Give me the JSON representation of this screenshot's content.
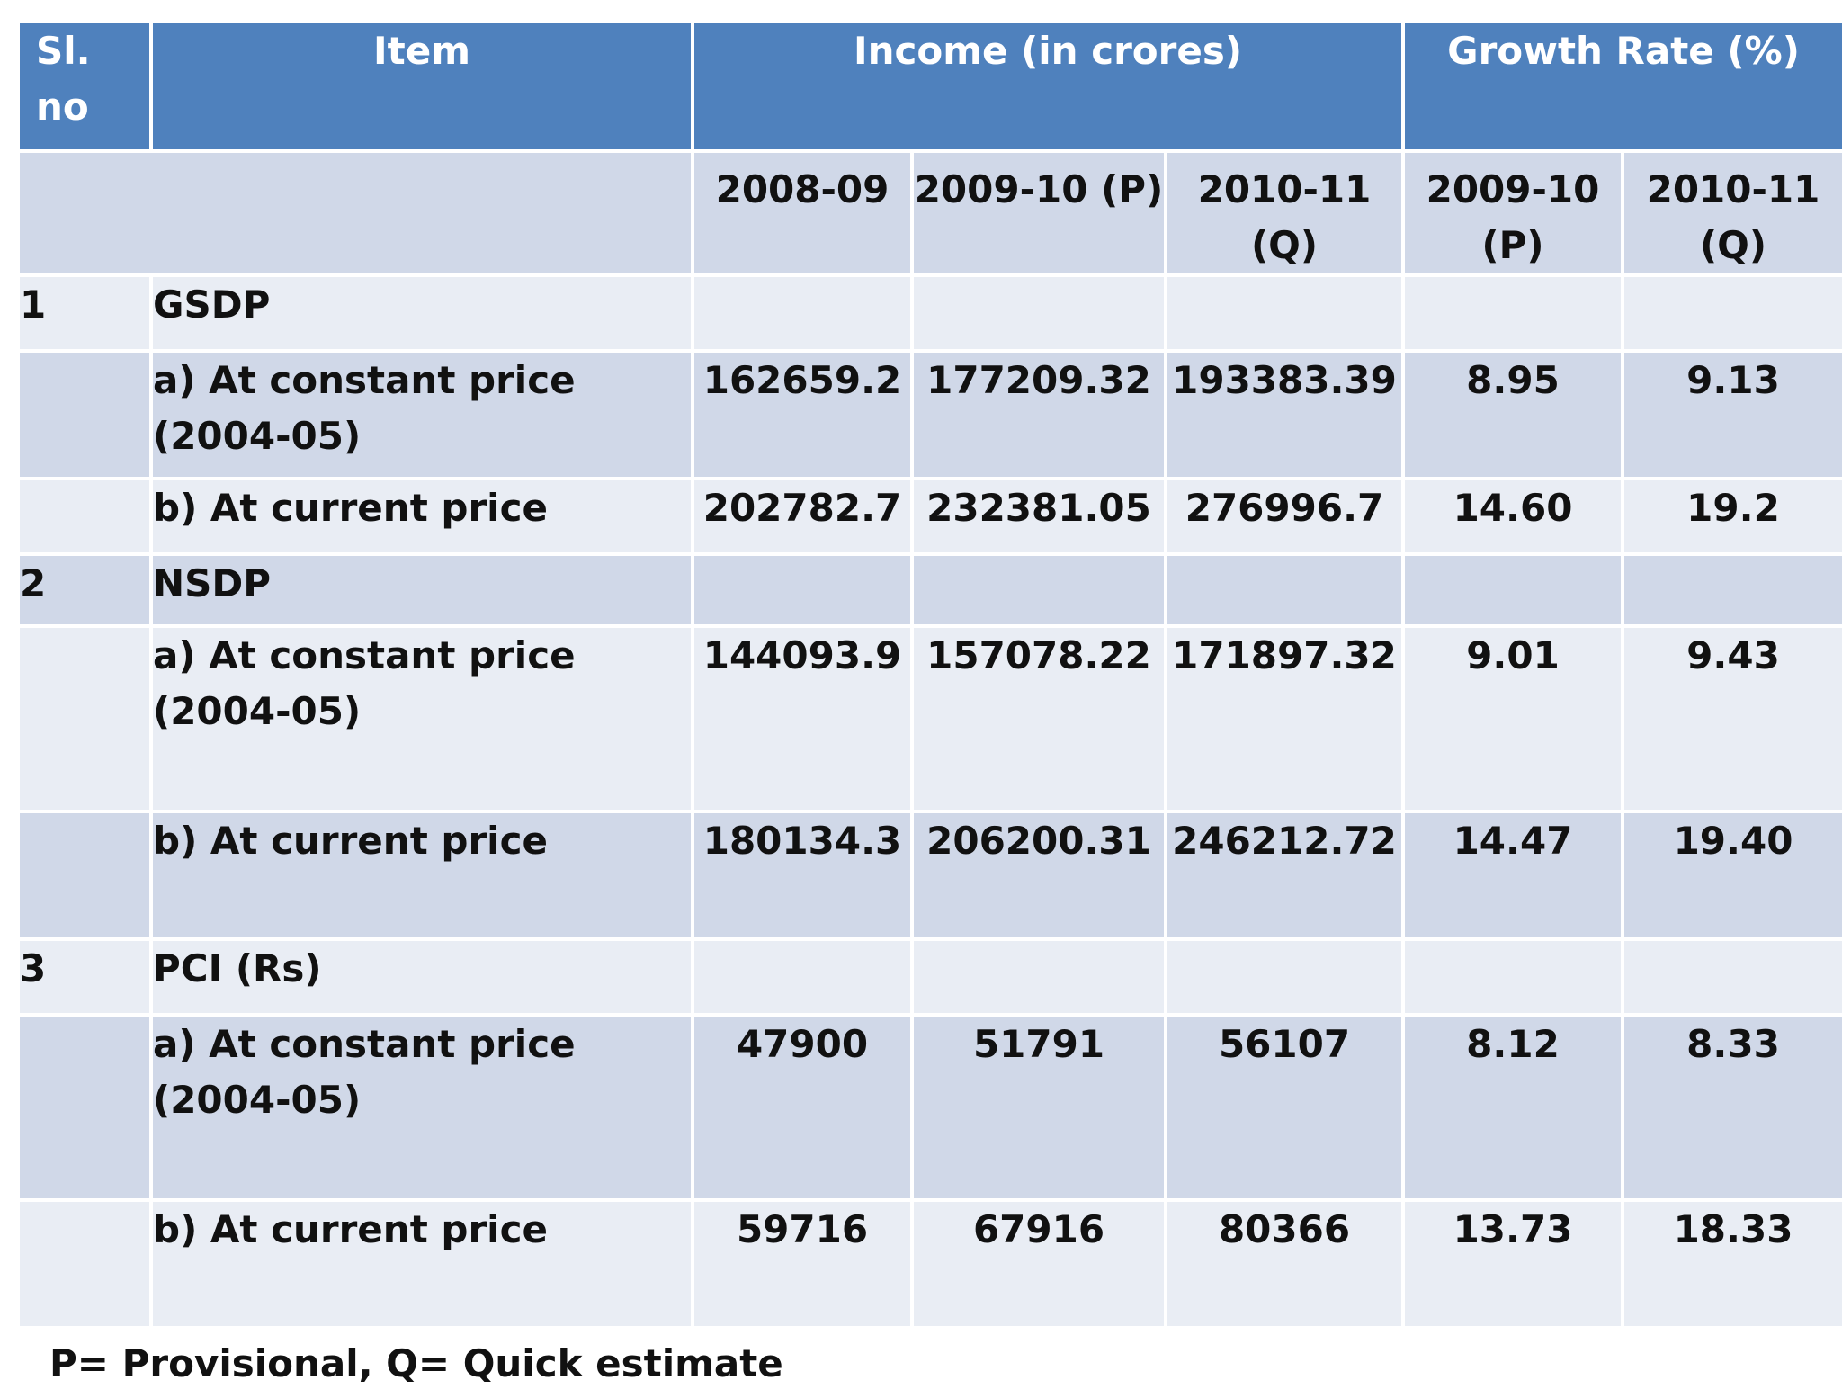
{
  "header": {
    "sl_no": "Sl. no",
    "item": "Item",
    "income": "Income (in crores)",
    "growth": "Growth Rate (%)"
  },
  "subheader": {
    "income_years": [
      "2008-09",
      "2009-10 (P)",
      "2010-11 (Q)"
    ],
    "growth_years": [
      "2009-10 (P)",
      "2010-11 (Q)"
    ]
  },
  "sections": [
    {
      "sl": "1",
      "name": "GSDP",
      "rows": [
        {
          "item": "a) At constant price (2004-05)",
          "values": [
            "162659.2",
            "177209.32",
            "193383.39",
            "8.95",
            "9.13"
          ]
        },
        {
          "item": "b) At current price",
          "values": [
            "202782.7",
            "232381.05",
            "276996.7",
            "14.60",
            "19.2"
          ]
        }
      ]
    },
    {
      "sl": "2",
      "name": "NSDP",
      "rows": [
        {
          "item": "a) At constant price (2004-05)",
          "values": [
            "144093.9",
            "157078.22",
            "171897.32",
            "9.01",
            "9.43"
          ]
        },
        {
          "item": "b) At current price",
          "values": [
            "180134.3",
            "206200.31",
            "246212.72",
            "14.47",
            "19.40"
          ]
        }
      ]
    },
    {
      "sl": "3",
      "name": "PCI (Rs)",
      "rows": [
        {
          "item": "a) At constant price (2004-05)",
          "values": [
            "47900",
            "51791",
            "56107",
            "8.12",
            "8.33"
          ]
        },
        {
          "item": "b) At current price",
          "values": [
            "59716",
            "67916",
            "80366",
            "13.73",
            "18.33"
          ]
        }
      ]
    }
  ],
  "footnote": "P= Provisional, Q= Quick estimate"
}
